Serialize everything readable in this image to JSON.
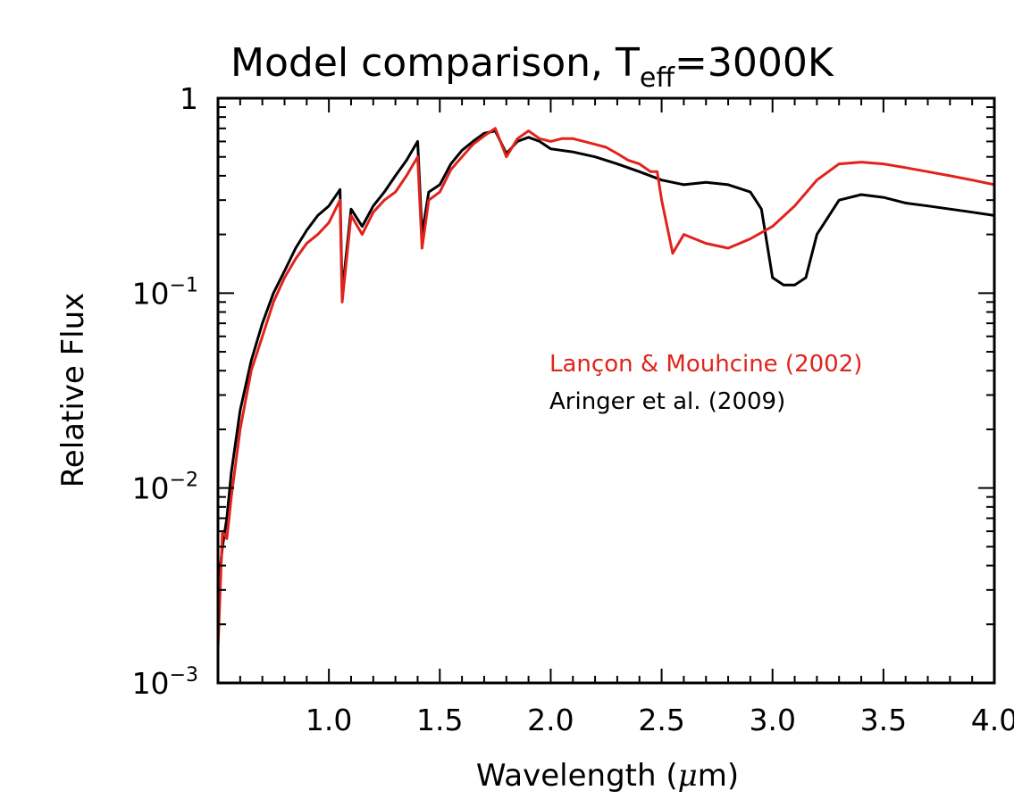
{
  "chart_data": {
    "type": "line",
    "title": {
      "main": "Model comparison, T",
      "sub": "eff",
      "tail": "=3000K"
    },
    "xlabel": {
      "pre": "Wavelength (",
      "mu": "μ",
      "post": "m)"
    },
    "ylabel": "Relative Flux",
    "xlim": [
      0.5,
      4.0
    ],
    "ylim": [
      0.001,
      1
    ],
    "yscale": "log",
    "grid": false,
    "x_ticks": [
      "1.0",
      "1.5",
      "2.0",
      "2.5",
      "3.0",
      "3.5",
      "4.0"
    ],
    "y_ticks": [
      {
        "base": "1",
        "exp": ""
      },
      {
        "base": "10",
        "exp": "−1"
      },
      {
        "base": "10",
        "exp": "−2"
      },
      {
        "base": "10",
        "exp": "−3"
      }
    ],
    "legend": {
      "placement": "center-right"
    },
    "colors": {
      "lancon": "#e0231c",
      "aringer": "#000000"
    },
    "series": [
      {
        "name": "Lançon & Mouhcine (2002)",
        "color": "#e0231c",
        "x": [
          0.5,
          0.52,
          0.54,
          0.56,
          0.6,
          0.65,
          0.7,
          0.75,
          0.8,
          0.85,
          0.9,
          0.95,
          1.0,
          1.05,
          1.06,
          1.1,
          1.15,
          1.2,
          1.25,
          1.3,
          1.35,
          1.4,
          1.42,
          1.45,
          1.5,
          1.55,
          1.6,
          1.65,
          1.7,
          1.75,
          1.8,
          1.85,
          1.9,
          1.95,
          2.0,
          2.05,
          2.1,
          2.15,
          2.2,
          2.25,
          2.3,
          2.35,
          2.4,
          2.45,
          2.48,
          2.5,
          2.55,
          2.6,
          2.7,
          2.8,
          2.9,
          3.0,
          3.1,
          3.2,
          3.3,
          3.4,
          3.5,
          3.6,
          3.7,
          3.8,
          3.9,
          4.0
        ],
        "y": [
          0.0015,
          0.006,
          0.0055,
          0.009,
          0.02,
          0.04,
          0.06,
          0.09,
          0.12,
          0.15,
          0.18,
          0.2,
          0.23,
          0.3,
          0.09,
          0.25,
          0.2,
          0.26,
          0.3,
          0.33,
          0.4,
          0.5,
          0.17,
          0.3,
          0.33,
          0.43,
          0.5,
          0.58,
          0.64,
          0.7,
          0.5,
          0.62,
          0.68,
          0.62,
          0.6,
          0.62,
          0.62,
          0.6,
          0.58,
          0.56,
          0.52,
          0.48,
          0.46,
          0.42,
          0.42,
          0.3,
          0.16,
          0.2,
          0.18,
          0.17,
          0.19,
          0.22,
          0.28,
          0.38,
          0.46,
          0.47,
          0.46,
          0.44,
          0.42,
          0.4,
          0.38,
          0.36
        ]
      },
      {
        "name": "Aringer et al. (2009)",
        "color": "#000000",
        "x": [
          0.5,
          0.52,
          0.54,
          0.56,
          0.6,
          0.65,
          0.7,
          0.75,
          0.8,
          0.85,
          0.9,
          0.95,
          1.0,
          1.05,
          1.06,
          1.1,
          1.15,
          1.2,
          1.25,
          1.3,
          1.35,
          1.4,
          1.42,
          1.45,
          1.5,
          1.55,
          1.6,
          1.65,
          1.7,
          1.75,
          1.8,
          1.85,
          1.9,
          1.95,
          2.0,
          2.1,
          2.2,
          2.3,
          2.4,
          2.5,
          2.6,
          2.7,
          2.8,
          2.9,
          2.95,
          3.0,
          3.05,
          3.1,
          3.15,
          3.2,
          3.3,
          3.4,
          3.5,
          3.6,
          3.7,
          3.8,
          3.9,
          4.0
        ],
        "y": [
          0.003,
          0.005,
          0.007,
          0.012,
          0.025,
          0.045,
          0.07,
          0.1,
          0.13,
          0.17,
          0.21,
          0.25,
          0.28,
          0.34,
          0.1,
          0.27,
          0.22,
          0.28,
          0.33,
          0.4,
          0.48,
          0.6,
          0.2,
          0.33,
          0.36,
          0.46,
          0.54,
          0.6,
          0.66,
          0.68,
          0.52,
          0.6,
          0.63,
          0.6,
          0.55,
          0.53,
          0.5,
          0.46,
          0.42,
          0.38,
          0.36,
          0.37,
          0.36,
          0.33,
          0.27,
          0.12,
          0.11,
          0.11,
          0.12,
          0.2,
          0.3,
          0.32,
          0.31,
          0.29,
          0.28,
          0.27,
          0.26,
          0.25
        ]
      }
    ]
  }
}
